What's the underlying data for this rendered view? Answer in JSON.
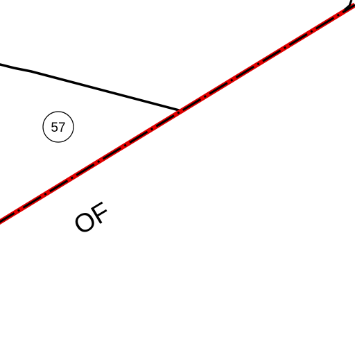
{
  "map": {
    "parcel_number": "57",
    "street_label": "OF",
    "colors": {
      "background": "#ffffff",
      "boundary_red": "#e00000",
      "line_black": "#000000"
    }
  }
}
